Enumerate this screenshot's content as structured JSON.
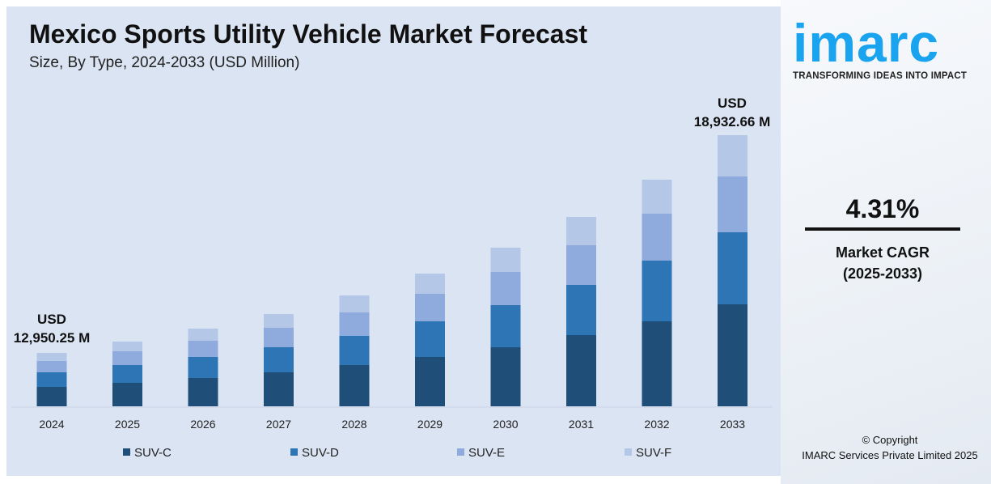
{
  "title": "Mexico Sports Utility Vehicle Market Forecast",
  "subtitle": "Size, By Type, 2024-2033 (USD Million)",
  "annotations": {
    "start_currency": "USD",
    "start_value": "12,950.25 M",
    "end_currency": "USD",
    "end_value": "18,932.66 M"
  },
  "logo": {
    "word": "imarc",
    "tagline": "TRANSFORMING IDEAS INTO IMPACT"
  },
  "cagr": {
    "value": "4.31%",
    "label": "Market CAGR",
    "period": "(2025-2033)"
  },
  "copyright": {
    "line1": "© Copyright",
    "line2": "IMARC Services Private Limited 2025"
  },
  "chart_data": {
    "type": "bar",
    "stacked": true,
    "title": "Mexico Sports Utility Vehicle Market Forecast",
    "subtitle": "Size, By Type, 2024-2033 (USD Million)",
    "categories": [
      "2024",
      "2025",
      "2026",
      "2027",
      "2028",
      "2029",
      "2030",
      "2031",
      "2032",
      "2033"
    ],
    "totals": [
      12950.25,
      13261,
      13617,
      14017,
      14529,
      15129,
      15841,
      16686,
      17709,
      18932.66
    ],
    "series": [
      {
        "name": "SUV-C",
        "color": "#1f4e79",
        "values": [
          4709,
          4807,
          4965,
          5164,
          5409,
          5628,
          5899,
          6275,
          6641,
          7121
        ]
      },
      {
        "name": "SUV-D",
        "color": "#2e75b6",
        "values": [
          3532,
          3647,
          3688,
          3812,
          3818,
          4059,
          4203,
          4421,
          4743,
          5030
        ]
      },
      {
        "name": "SUV-E",
        "color": "#8faadc",
        "values": [
          2747,
          2818,
          2837,
          2951,
          3076,
          3136,
          3314,
          3494,
          3668,
          3900
        ]
      },
      {
        "name": "SUV-F",
        "color": "#b4c7e7",
        "values": [
          1962,
          1989,
          2128,
          2090,
          2227,
          2306,
          2425,
          2496,
          2656,
          2882
        ]
      }
    ],
    "grid": false,
    "legend": "bottom",
    "y_axis_shown": false
  }
}
